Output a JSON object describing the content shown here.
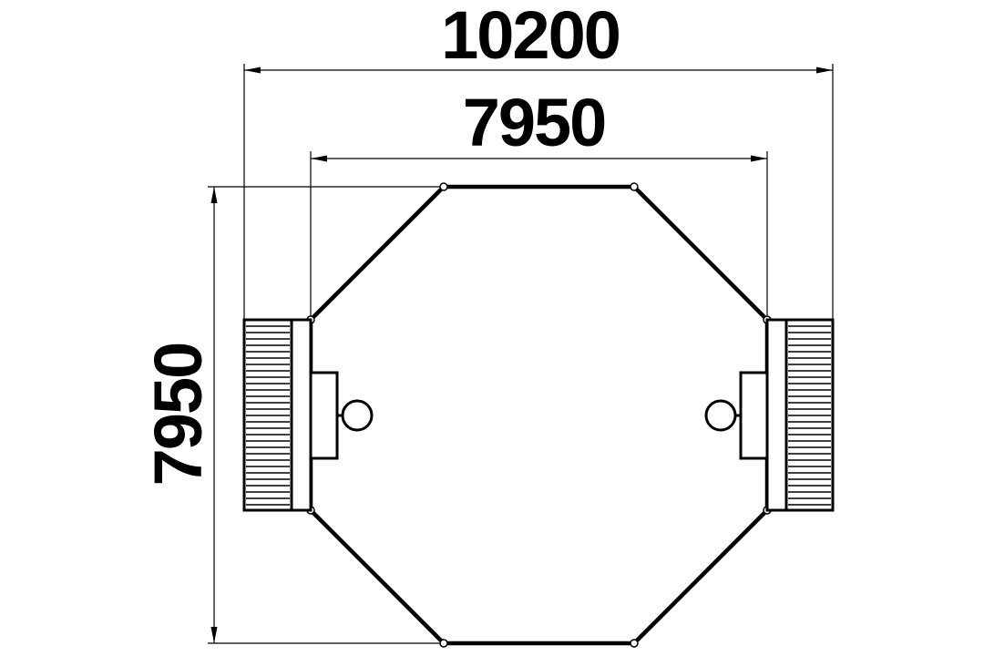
{
  "dimensions": {
    "overall_width": "10200",
    "inner_width": "7950",
    "height": "7950"
  },
  "colors": {
    "line": "#000000",
    "background": "#ffffff"
  }
}
